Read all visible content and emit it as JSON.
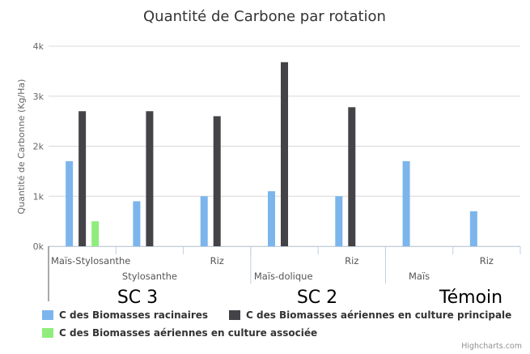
{
  "chart_data": {
    "type": "bar",
    "title": "Quantité de Carbone par rotation",
    "ylabel": "Quantité de Carbonne (Kg/Ha)",
    "ylim": [
      0,
      4000
    ],
    "yticks": [
      "0k",
      "1k",
      "2k",
      "3k",
      "4k"
    ],
    "grid": true,
    "categories": [
      "Maïs-Stylosanthe",
      "Stylosanthe",
      "Riz",
      "Maïs-dolique",
      "Riz",
      "Maïs",
      "Riz"
    ],
    "groups": [
      {
        "label": "SC 3",
        "span": [
          0,
          2
        ]
      },
      {
        "label": "SC 2",
        "span": [
          3,
          4
        ]
      },
      {
        "label": "Témoin",
        "span": [
          5,
          6
        ]
      }
    ],
    "series": [
      {
        "name": "C des Biomasses racinaires",
        "color": "#7cb5ec",
        "values": [
          1700,
          900,
          1000,
          1100,
          1000,
          1700,
          700
        ]
      },
      {
        "name": "C des Biomasses aériennes en culture principale",
        "color": "#434348",
        "values": [
          2700,
          2700,
          2600,
          3680,
          2780,
          null,
          null
        ]
      },
      {
        "name": "C des Biomasses aériennes en culture associée",
        "color": "#90ed7d",
        "values": [
          500,
          null,
          null,
          null,
          null,
          null,
          null
        ]
      }
    ],
    "legend_position": "bottom-left",
    "credits": "Highcharts.com"
  }
}
